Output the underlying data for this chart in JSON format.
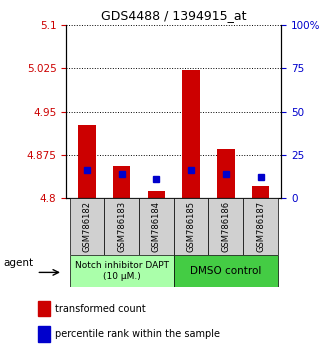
{
  "title": "GDS4488 / 1394915_at",
  "samples": [
    "GSM786182",
    "GSM786183",
    "GSM786184",
    "GSM786185",
    "GSM786186",
    "GSM786187"
  ],
  "red_bar_bottom": 4.8,
  "red_bar_tops": [
    4.926,
    4.856,
    4.813,
    5.022,
    4.885,
    4.822
  ],
  "blue_values": [
    4.848,
    4.842,
    4.834,
    4.848,
    4.842,
    4.837
  ],
  "ylim_left": [
    4.8,
    5.1
  ],
  "ylim_right": [
    0,
    100
  ],
  "left_yticks": [
    4.8,
    4.875,
    4.95,
    5.025,
    5.1
  ],
  "right_yticks": [
    0,
    25,
    50,
    75,
    100
  ],
  "right_ytick_labels": [
    "0",
    "25",
    "50",
    "75",
    "100%"
  ],
  "left_color": "#cc0000",
  "right_color": "#0000cc",
  "bar_width": 0.5,
  "group1_label": "Notch inhibitor DAPT\n(10 μM.)",
  "group1_color": "#aaffaa",
  "group2_label": "DMSO control",
  "group2_color": "#44cc44",
  "agent_label": "agent",
  "legend_red": "transformed count",
  "legend_blue": "percentile rank within the sample",
  "bg_color": "#ffffff"
}
